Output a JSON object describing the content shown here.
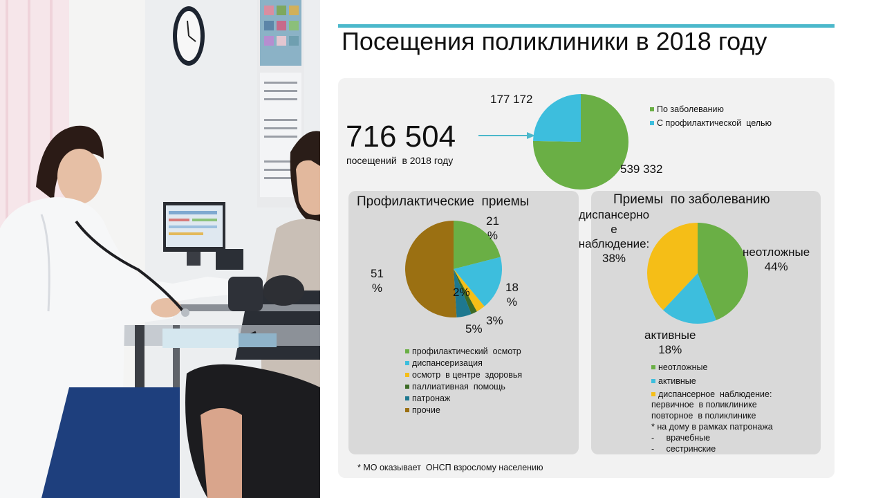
{
  "title": "Посещения поликлиники в 2018 году",
  "summary": {
    "total": "716 504",
    "caption": "посещений  в 2018 году"
  },
  "footnote": "* МО оказывает  ОНСП взрослому населению",
  "colors": {
    "accent": "#4bb8cb",
    "panel": "#f2f2f2",
    "sub_panel": "#d9d9d9"
  },
  "icons": {
    "arrow": "arrow-right-icon"
  },
  "chart_data": [
    {
      "type": "pie",
      "title": "",
      "slices": [
        {
          "label": "По заболеванию",
          "value": 539332,
          "value_label": "539 332",
          "color": "#6aaf45"
        },
        {
          "label": "С профилактической  целью",
          "value": 177172,
          "value_label": "177 172",
          "color": "#3dbedd"
        }
      ],
      "legend": "right"
    },
    {
      "type": "pie",
      "title": "Профилактические  приемы",
      "slices": [
        {
          "label": "профилактический  осмотр",
          "value": 21,
          "value_label": "21\n%",
          "color": "#6aaf45"
        },
        {
          "label": "диспансеризация",
          "value": 18,
          "value_label": "18\n%",
          "color": "#3dbedd"
        },
        {
          "label": "осмотр  в центре  здоровья",
          "value": 3,
          "value_label": "3%",
          "color": "#f5be17"
        },
        {
          "label": "паллиативная  помощь",
          "value": 2,
          "value_label": "2%",
          "color": "#3d6b26"
        },
        {
          "label": "патронаж",
          "value": 5,
          "value_label": "5%",
          "color": "#1e788f"
        },
        {
          "label": "прочие",
          "value": 51,
          "value_label": "51\n%",
          "color": "#9b7012"
        }
      ],
      "legend": "bottom"
    },
    {
      "type": "pie",
      "title": "Приемы  по заболеванию",
      "slices": [
        {
          "label": "неотложные",
          "value": 44,
          "value_label": "неотложные\n44%",
          "color": "#6aaf45"
        },
        {
          "label": "активные",
          "value": 18,
          "value_label": "активные\n18%",
          "color": "#3dbedd"
        },
        {
          "label": "диспансерное  наблюдение:",
          "value": 38,
          "value_label": "диспансерно\nе\nнаблюдение:\n38%",
          "color": "#f5be17"
        }
      ],
      "legend": "bottom",
      "legend_note": "первичное  в поликлинике\nповторное  в поликлинике\n* на дому в рамках патронажа\n-     врачебные\n-     сестринские"
    }
  ]
}
